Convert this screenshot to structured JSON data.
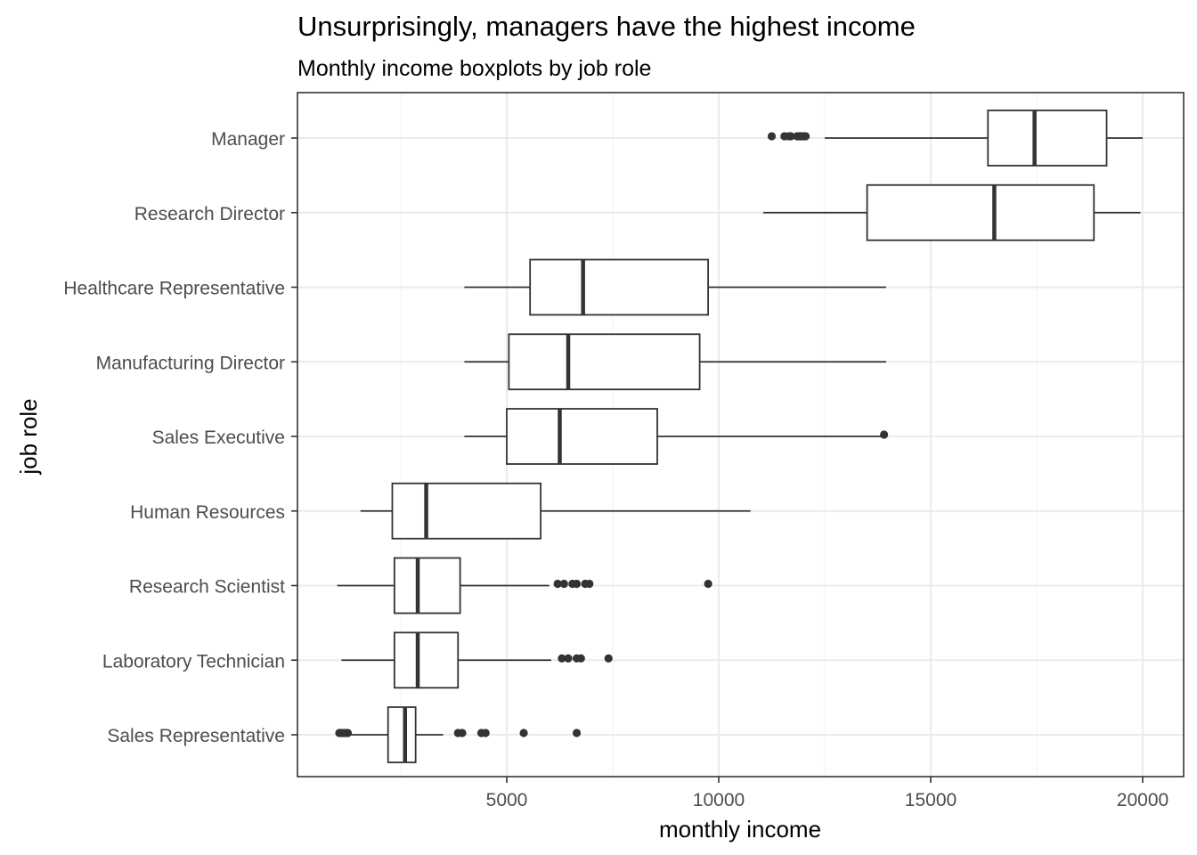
{
  "chart_data": {
    "type": "boxplot",
    "title": "Unsurprisingly, managers have the highest income",
    "subtitle": "Monthly income boxplots by job role",
    "xlabel": "monthly income",
    "ylabel": "job role",
    "xlim": [
      0,
      21000
    ],
    "xticks": [
      5000,
      10000,
      15000,
      20000
    ],
    "grid": true,
    "box_color": "#333333",
    "point_color": "#333333",
    "categories": [
      "Manager",
      "Research Director",
      "Healthcare Representative",
      "Manufacturing Director",
      "Sales Executive",
      "Human Resources",
      "Research Scientist",
      "Laboratory Technician",
      "Sales Representative"
    ],
    "boxes": [
      {
        "label": "Manager",
        "whisker_low": 12500,
        "q1": 16350,
        "median": 17450,
        "q3": 19150,
        "whisker_high": 20000,
        "outliers": [
          11250,
          11550,
          11650,
          11700,
          11850,
          11900,
          11950,
          12000,
          12050
        ]
      },
      {
        "label": "Research Director",
        "whisker_low": 11050,
        "q1": 13500,
        "median": 16500,
        "q3": 18850,
        "whisker_high": 19950,
        "outliers": []
      },
      {
        "label": "Healthcare Representative",
        "whisker_low": 4000,
        "q1": 5550,
        "median": 6800,
        "q3": 9750,
        "whisker_high": 13950,
        "outliers": []
      },
      {
        "label": "Manufacturing Director",
        "whisker_low": 4000,
        "q1": 5050,
        "median": 6450,
        "q3": 9550,
        "whisker_high": 13950,
        "outliers": []
      },
      {
        "label": "Sales Executive",
        "whisker_low": 4000,
        "q1": 5000,
        "median": 6250,
        "q3": 8550,
        "whisker_high": 13900,
        "outliers": [
          13900
        ]
      },
      {
        "label": "Human Resources",
        "whisker_low": 1550,
        "q1": 2300,
        "median": 3100,
        "q3": 5800,
        "whisker_high": 10750,
        "outliers": []
      },
      {
        "label": "Research Scientist",
        "whisker_low": 1000,
        "q1": 2350,
        "median": 2900,
        "q3": 3900,
        "whisker_high": 6000,
        "outliers": [
          6200,
          6350,
          6550,
          6650,
          6850,
          6950,
          9750
        ]
      },
      {
        "label": "Laboratory Technician",
        "whisker_low": 1100,
        "q1": 2350,
        "median": 2900,
        "q3": 3850,
        "whisker_high": 6050,
        "outliers": [
          6300,
          6450,
          6650,
          6750,
          7400
        ]
      },
      {
        "label": "Sales Representative",
        "whisker_low": 1200,
        "q1": 2200,
        "median": 2600,
        "q3": 2850,
        "whisker_high": 3500,
        "outliers": [
          1050,
          1100,
          1150,
          1200,
          1250,
          3850,
          3950,
          4400,
          4500,
          5400,
          6650
        ]
      }
    ]
  }
}
